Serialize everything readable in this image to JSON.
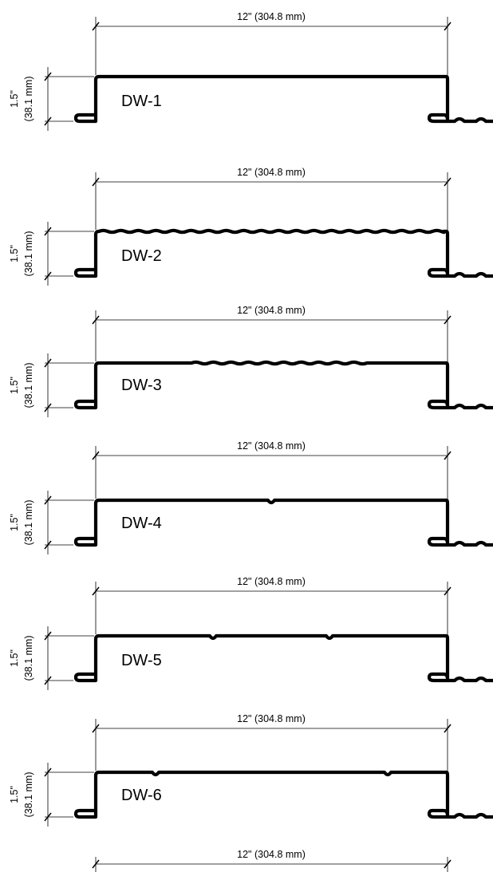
{
  "panels": [
    {
      "label": "DW-1",
      "width_dim": "12\" (304.8 mm)",
      "height_dim_in": "1.5\"",
      "height_dim_mm": "(38.1 mm)",
      "top_detail": "flat"
    },
    {
      "label": "DW-2",
      "width_dim": "12\" (304.8 mm)",
      "height_dim_in": "1.5\"",
      "height_dim_mm": "(38.1 mm)",
      "top_detail": "full-wave"
    },
    {
      "label": "DW-3",
      "width_dim": "12\" (304.8 mm)",
      "height_dim_in": "1.5\"",
      "height_dim_mm": "(38.1 mm)",
      "top_detail": "partial-wave"
    },
    {
      "label": "DW-4",
      "width_dim": "12\" (304.8 mm)",
      "height_dim_in": "1.5\"",
      "height_dim_mm": "(38.1 mm)",
      "top_detail": "one-rib"
    },
    {
      "label": "DW-5",
      "width_dim": "12\" (304.8 mm)",
      "height_dim_in": "1.5\"",
      "height_dim_mm": "(38.1 mm)",
      "top_detail": "two-ribs"
    },
    {
      "label": "DW-6",
      "width_dim": "12\" (304.8 mm)",
      "height_dim_in": "1.5\"",
      "height_dim_mm": "(38.1 mm)",
      "top_detail": "two-ribs-wide"
    }
  ],
  "bottom_dim": "12\" (304.8 mm)",
  "colors": {
    "line": "#000000",
    "background": "#ffffff"
  }
}
